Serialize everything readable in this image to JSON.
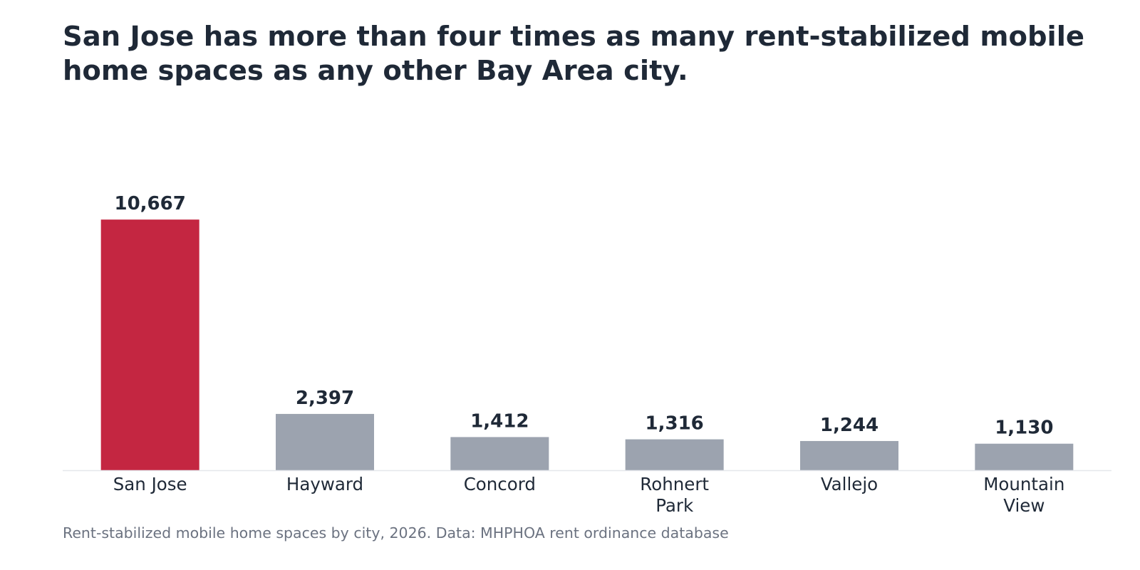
{
  "title": "San Jose has more than four times as many rent-stabilized mobile home spaces as any other Bay Area city.",
  "caption": "Rent-stabilized mobile home spaces by city, 2026. Data: MHPHOA rent ordinance database",
  "colors": {
    "highlight": "#c42641",
    "default": "#9ca3af",
    "text": "#1f2937",
    "caption": "#6b7280",
    "baseline": "#e5e7eb"
  },
  "chart_data": {
    "type": "bar",
    "categories": [
      [
        "San Jose"
      ],
      [
        "Hayward"
      ],
      [
        "Concord"
      ],
      [
        "Rohnert",
        "Park"
      ],
      [
        "Vallejo"
      ],
      [
        "Mountain",
        "View"
      ]
    ],
    "values": [
      10667,
      2397,
      1412,
      1316,
      1244,
      1130
    ],
    "value_labels": [
      "10,667",
      "2,397",
      "1,412",
      "1,316",
      "1,244",
      "1,130"
    ],
    "highlight_index": 0,
    "ylim": [
      0,
      11400
    ],
    "grid": false,
    "legend": "none",
    "xlabel": "",
    "ylabel": ""
  }
}
